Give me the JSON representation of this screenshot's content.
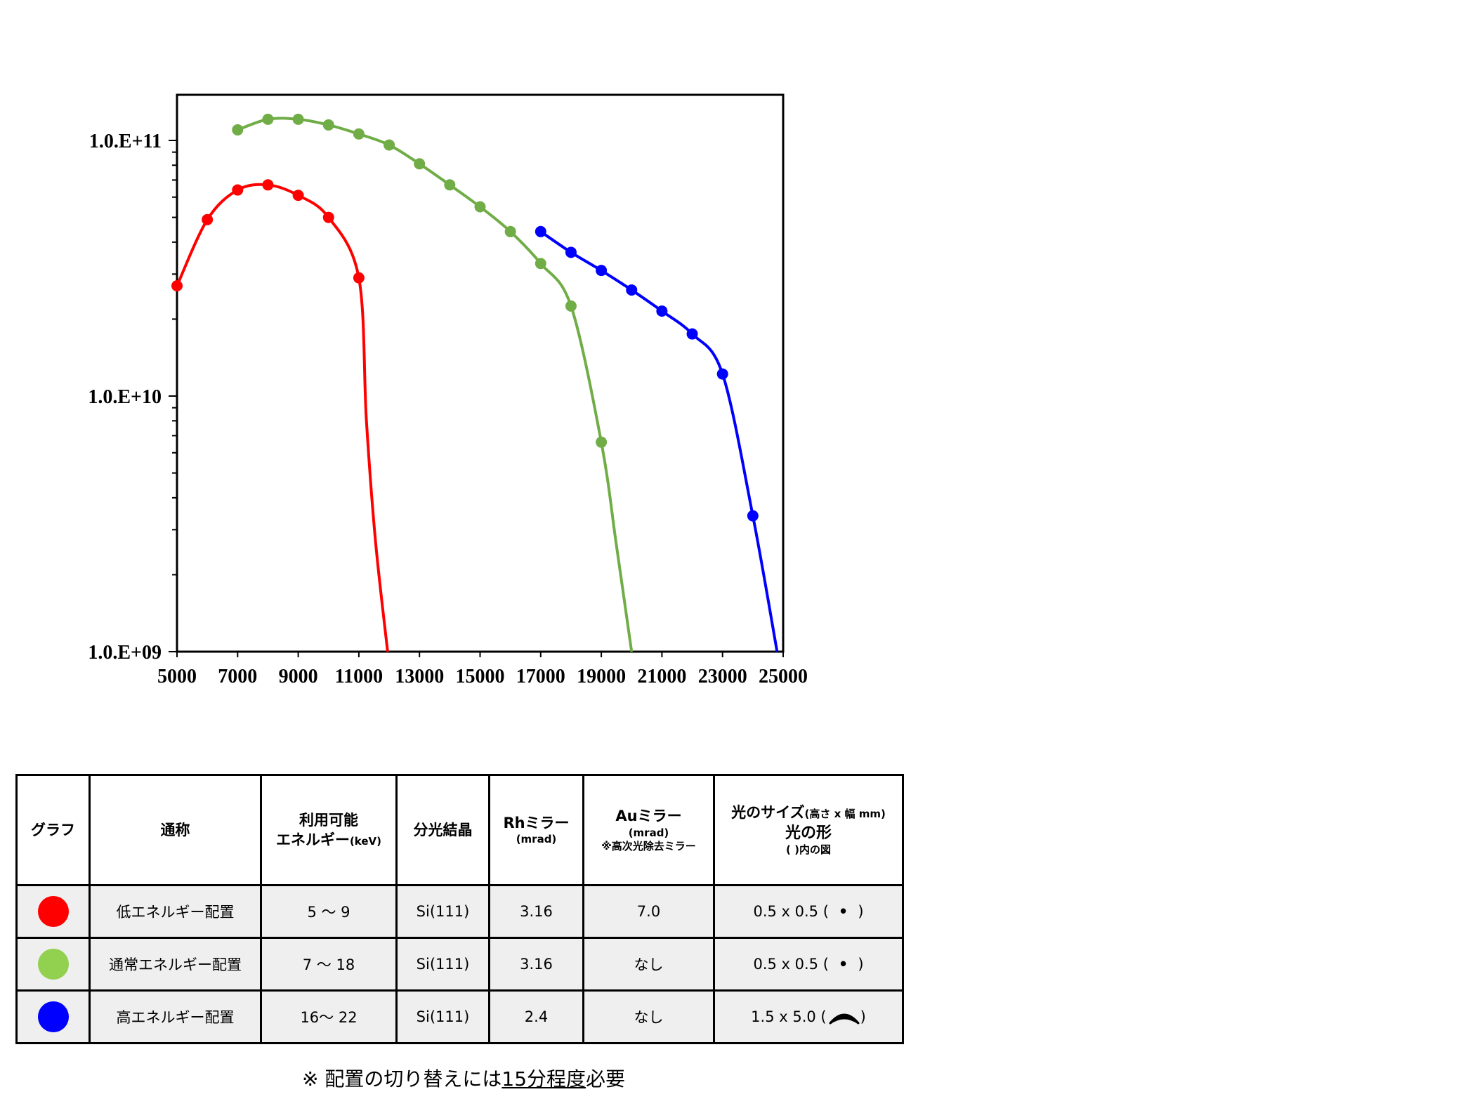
{
  "chart_data": {
    "type": "line",
    "title": "",
    "xlabel": "",
    "ylabel": "",
    "xlim": [
      5000,
      25000
    ],
    "ylim": [
      1000000000.0,
      160000000000.0
    ],
    "yscale": "log",
    "xticks": [
      5000,
      7000,
      9000,
      11000,
      13000,
      15000,
      17000,
      19000,
      21000,
      23000,
      25000
    ],
    "xtick_labels": [
      "5000",
      "7000",
      "9000",
      "11000",
      "13000",
      "15000",
      "17000",
      "19000",
      "21000",
      "23000",
      "25000"
    ],
    "yticks": [
      1000000000.0,
      10000000000.0,
      100000000000.0
    ],
    "ytick_labels": [
      "1.0.E+09",
      "1.0.E+10",
      "1.0.E+11"
    ],
    "grid": false,
    "legend": "none",
    "series": [
      {
        "color": "#ff0000",
        "x": [
          5000,
          6000,
          7000,
          8000,
          9000,
          10000,
          11000
        ],
        "y": [
          27000000000.0,
          49000000000.0,
          64000000000.0,
          67000000000.0,
          61000000000.0,
          50000000000.0,
          29000000000.0
        ],
        "curve_tail": [
          [
            11250,
            8000000000.0
          ],
          [
            11550,
            2700000000.0
          ],
          [
            11950,
            1000000000.0
          ]
        ]
      },
      {
        "color": "#70ad47",
        "x": [
          7000,
          8000,
          9000,
          10000,
          11000,
          12000,
          13000,
          14000,
          15000,
          16000,
          17000,
          18000,
          19000
        ],
        "y": [
          110000000000.0,
          121000000000.0,
          121000000000.0,
          115000000000.0,
          106000000000.0,
          96000000000.0,
          81000000000.0,
          67000000000.0,
          55000000000.0,
          44000000000.0,
          33000000000.0,
          22500000000.0,
          6600000000.0
        ],
        "curve_tail": [
          [
            19500,
            2600000000.0
          ],
          [
            20000,
            1000000000.0
          ]
        ]
      },
      {
        "color": "#0000ff",
        "x": [
          17000,
          18000,
          19000,
          20000,
          21000,
          22000,
          23000,
          24000
        ],
        "y": [
          44000000000.0,
          36500000000.0,
          31000000000.0,
          26000000000.0,
          21500000000.0,
          17500000000.0,
          12200000000.0,
          3400000000.0
        ],
        "curve_tail": [
          [
            24800,
            1000000000.0
          ]
        ]
      }
    ]
  },
  "table": {
    "headers": {
      "graph": "グラフ",
      "name": "通称",
      "energy_line1": "利用可能",
      "energy_line2": "エネルギー",
      "energy_unit": "(keV)",
      "crystal": "分光結晶",
      "rh": "Rhミラー",
      "rh_unit": "(mrad)",
      "au": "Auミラー",
      "au_unit": "(mrad)",
      "au_note": "※高次光除去ミラー",
      "size_main": "光のサイズ",
      "size_sub": "(高さ x 幅 mm)",
      "shape_main": "光の形",
      "shape_sub": "( )内の図"
    },
    "rows": [
      {
        "color": "#ff0000",
        "name": "低エネルギー配置",
        "energy": "5 ～ 9",
        "crystal": "Si(111)",
        "rh": "3.16",
        "au": "7.0",
        "size": "0.5 x 0.5 (",
        "shape_symbol": "•",
        "close": ")"
      },
      {
        "color": "#92d050",
        "name": "通常エネルギー配置",
        "energy": "7 ～ 18",
        "crystal": "Si(111)",
        "rh": "3.16",
        "au": "なし",
        "size": "0.5 x 0.5 (",
        "shape_symbol": "•",
        "close": ")"
      },
      {
        "color": "#0000ff",
        "name": "高エネルギー配置",
        "energy": "16～ 22",
        "crystal": "Si(111)",
        "rh": "2.4",
        "au": "なし",
        "size": "1.5 x 5.0 (",
        "shape_symbol": "arc",
        "close": ")"
      }
    ]
  },
  "footnote": {
    "prefix": "※ 配置の切り替えには",
    "underlined": "15分程度",
    "suffix": "必要"
  }
}
